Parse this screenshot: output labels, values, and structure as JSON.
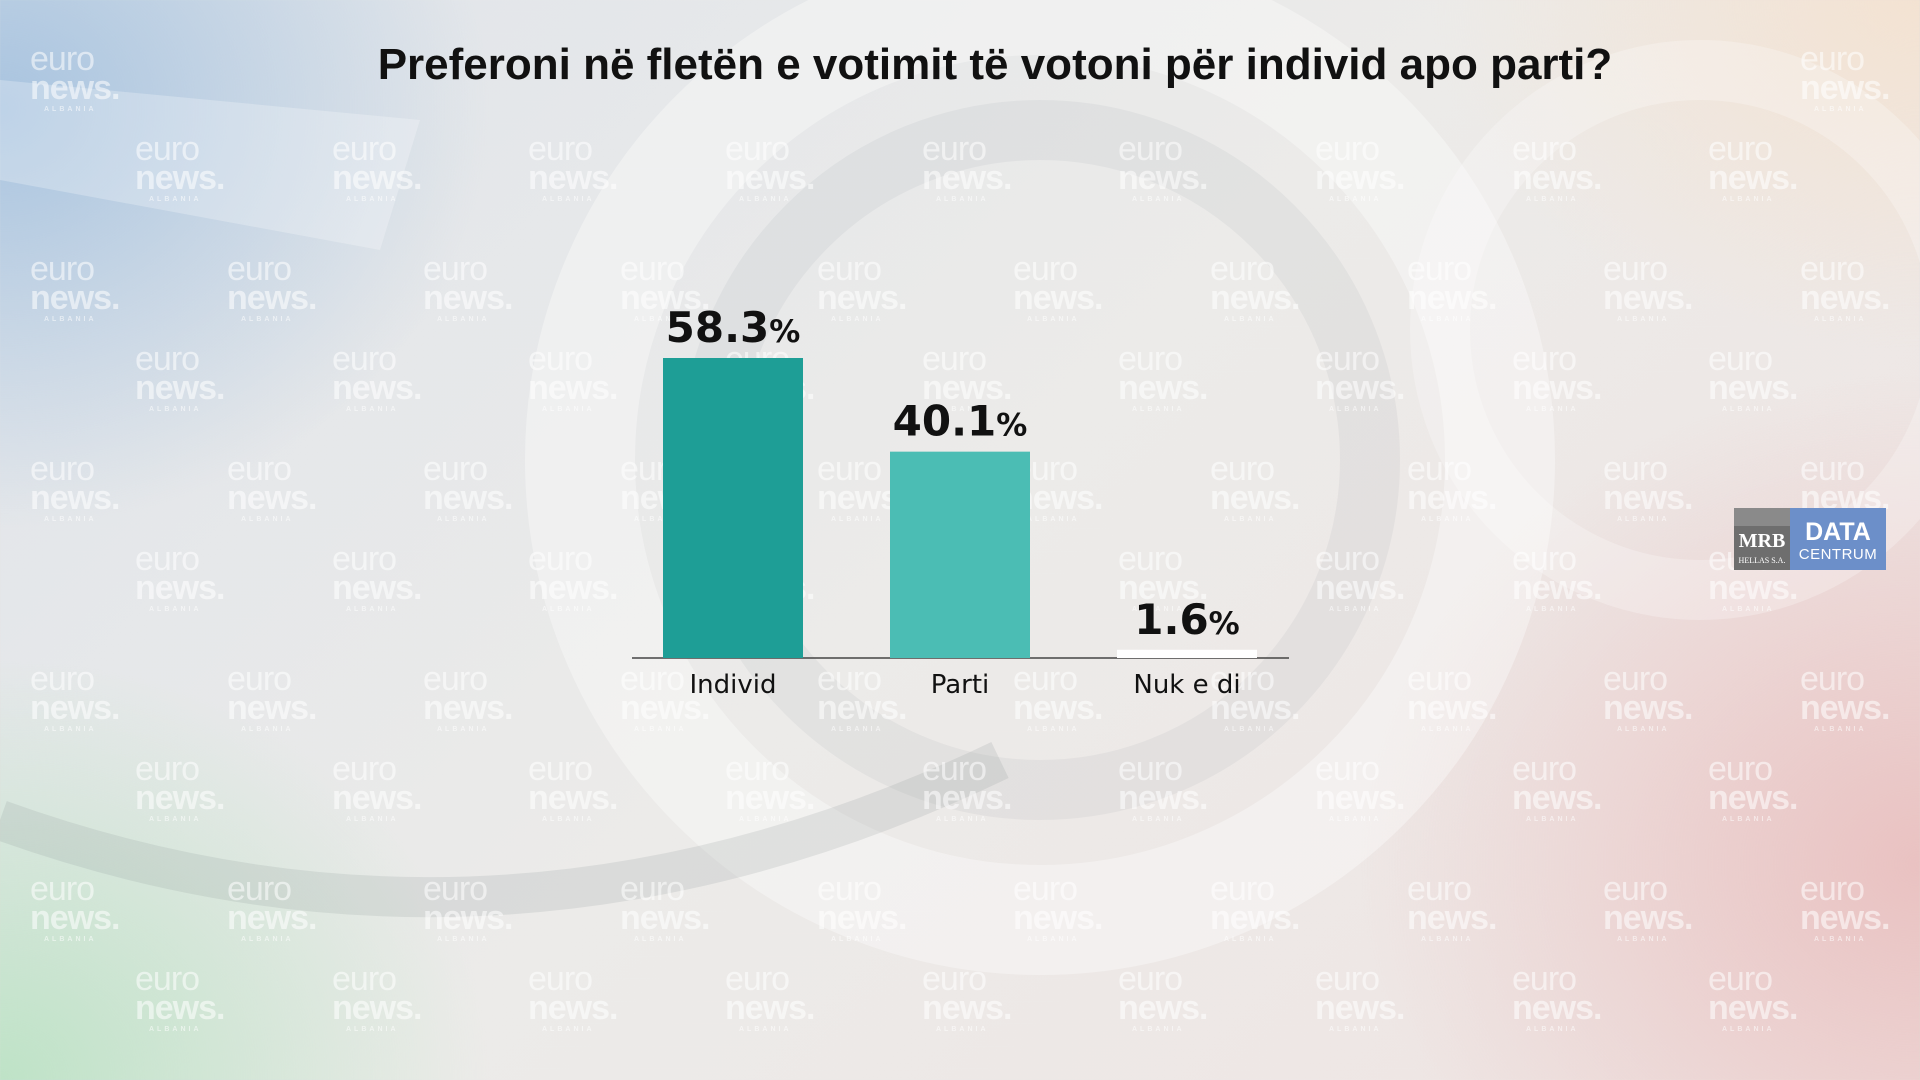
{
  "chart_data": {
    "type": "bar",
    "title": "Preferoni në fletën e votimit të votoni për individ apo parti?",
    "categories": [
      "Individ",
      "Parti",
      "Nuk e di"
    ],
    "values": [
      58.3,
      40.1,
      1.6
    ],
    "value_labels": [
      "58.3",
      "40.1",
      "1.6"
    ],
    "value_unit": "%",
    "ylim": [
      0,
      70
    ],
    "grid": false,
    "legend": "none",
    "colors": [
      "#1e9e96",
      "#4bbdb4",
      "#ffffff"
    ]
  },
  "watermark": {
    "line1": "euro",
    "line2": "news.",
    "line3": "ALBANIA"
  },
  "logo": {
    "mrb_name": "MRB",
    "mrb_sub": "HELLAS S.A.",
    "data_line1": "DATA",
    "data_line2": "CENTRUM"
  }
}
